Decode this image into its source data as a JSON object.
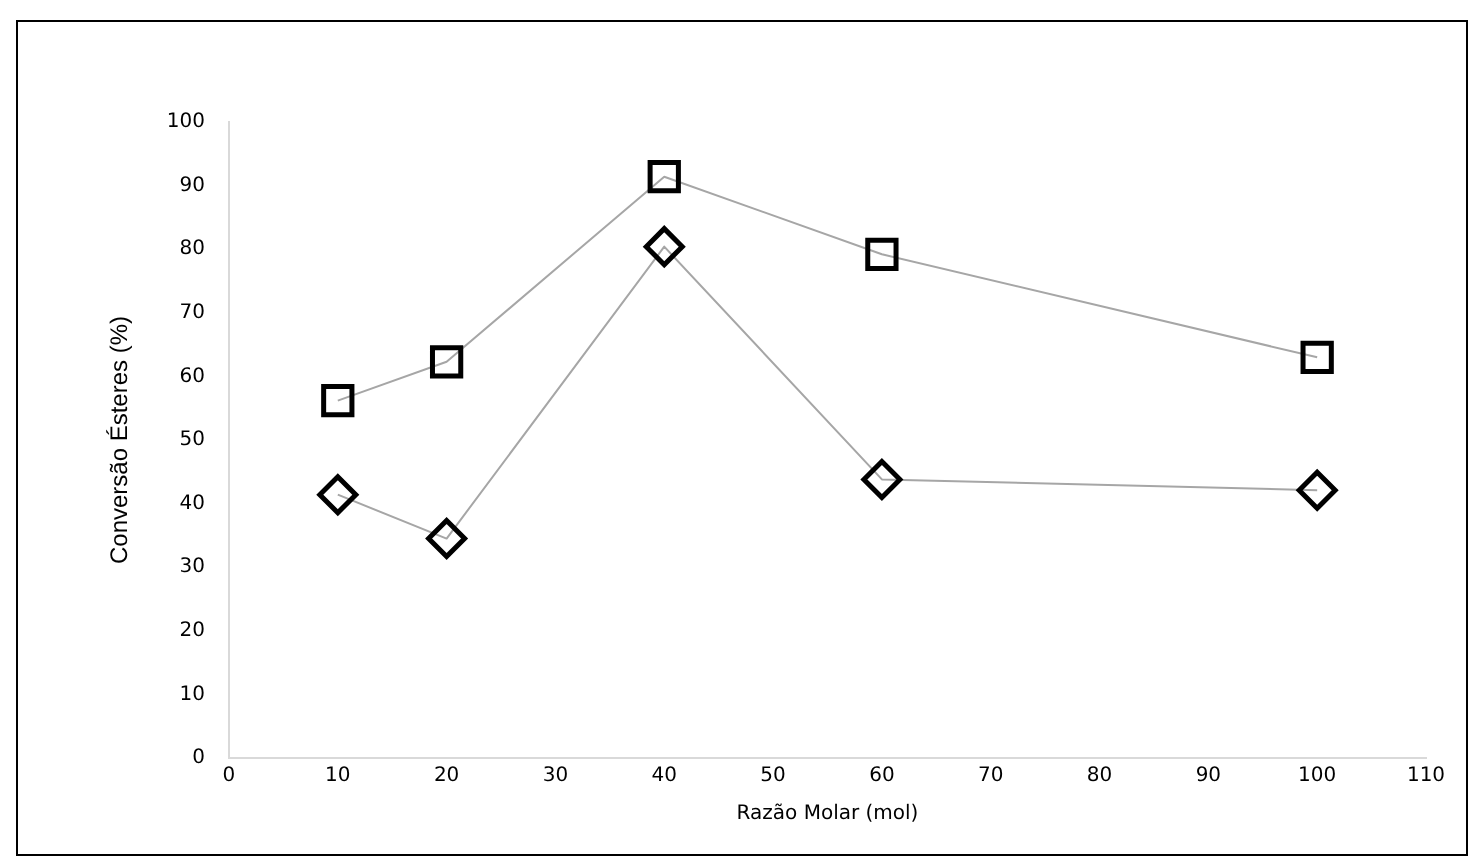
{
  "chart_data": {
    "type": "line",
    "xlabel": "Razão Molar (mol)",
    "ylabel": "Conversão Ésteres (%)",
    "x": [
      10,
      20,
      40,
      60,
      100
    ],
    "series": [
      {
        "color": "#000000",
        "marker": "square",
        "values": [
          56.2,
          62.3,
          91.4,
          79.2,
          63.0
        ]
      },
      {
        "color": "#000000",
        "marker": "diamond",
        "values": [
          41.4,
          34.5,
          80.4,
          43.8,
          42.1
        ]
      }
    ],
    "xlim": [
      0,
      110
    ],
    "xticks": [
      0,
      10,
      20,
      30,
      40,
      50,
      60,
      70,
      80,
      90,
      100,
      110
    ],
    "ylim": [
      0,
      100
    ],
    "yticks": [
      0,
      10,
      20,
      30,
      40,
      50,
      60,
      70,
      80,
      90,
      100
    ],
    "grid": false,
    "legend": false,
    "line_style": "solid"
  }
}
